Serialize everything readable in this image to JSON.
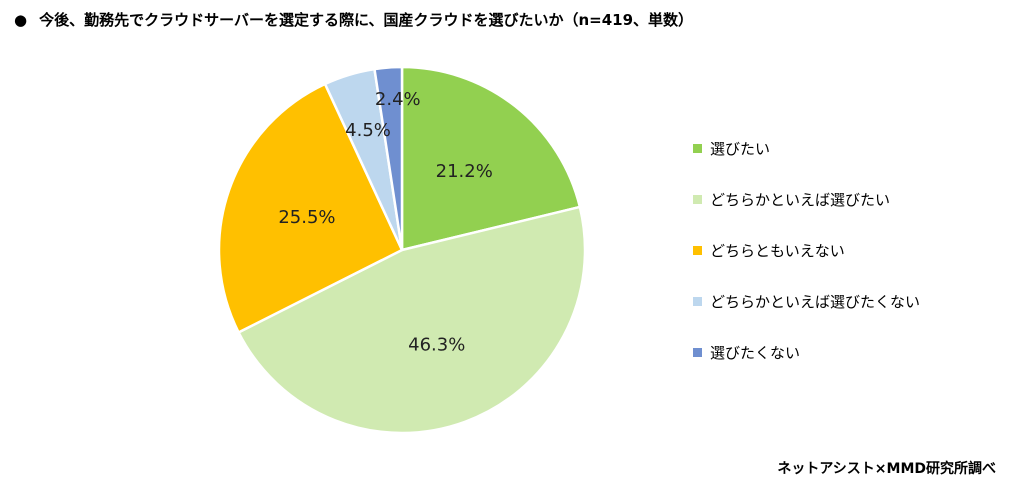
{
  "title": {
    "bullet": "●",
    "text": "今後、勤務先でクラウドサーバーを選定する際に、国産クラウドを選びたいか（n=419、単数）"
  },
  "source": "ネットアシスト×MMD研究所調べ",
  "chart_data": {
    "type": "pie",
    "categories": [
      "選びたい",
      "どちらかといえば選びたい",
      "どちらともいえない",
      "どちらかといえば選びたくない",
      "選びたくない"
    ],
    "values": [
      21.2,
      46.3,
      25.5,
      4.5,
      2.4
    ],
    "data_labels": [
      "21.2%",
      "46.3%",
      "25.5%",
      "4.5%",
      "2.4%"
    ],
    "unit": "%",
    "start": "12 o'clock",
    "direction": "clockwise",
    "colors": [
      "#92d050",
      "#d0eab1",
      "#ffc000",
      "#bdd7ee",
      "#6f8fd0"
    ],
    "legend_position": "right"
  }
}
